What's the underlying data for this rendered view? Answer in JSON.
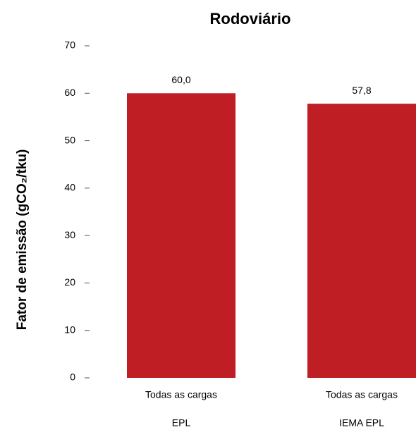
{
  "chart_data": {
    "type": "bar",
    "title": "Rodoviário",
    "y_label": "Fator de emissão (gCO₂/tku)",
    "categories": [
      "Todas as cargas",
      "Todas as cargas"
    ],
    "groups": [
      "EPL",
      "IEMA EPL"
    ],
    "values": [
      60.0,
      57.8
    ],
    "value_labels": [
      "60,0",
      "57,8"
    ],
    "color": "#be1e24",
    "ylim": [
      0,
      70
    ],
    "yticks": [
      0,
      10,
      20,
      30,
      40,
      50,
      60,
      70
    ],
    "grid": false
  }
}
